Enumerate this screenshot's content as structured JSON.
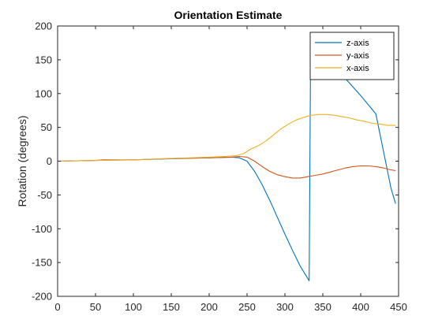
{
  "chart_data": {
    "type": "line",
    "title": "Orientation Estimate",
    "xlabel": "",
    "ylabel": "Rotation (degrees)",
    "xlim": [
      0,
      450
    ],
    "ylim": [
      -200,
      200
    ],
    "xticks": [
      0,
      50,
      100,
      150,
      200,
      250,
      300,
      350,
      400,
      450
    ],
    "yticks": [
      -200,
      -150,
      -100,
      -50,
      0,
      50,
      100,
      150,
      200
    ],
    "grid": false,
    "legend_position": "top-right",
    "series": [
      {
        "name": "z-axis",
        "color": "#0072BD",
        "points": [
          [
            0,
            0
          ],
          [
            50,
            1
          ],
          [
            100,
            2
          ],
          [
            150,
            3.5
          ],
          [
            200,
            5
          ],
          [
            230,
            6
          ],
          [
            240,
            5
          ],
          [
            250,
            0
          ],
          [
            260,
            -15
          ],
          [
            270,
            -35
          ],
          [
            280,
            -58
          ],
          [
            290,
            -83
          ],
          [
            300,
            -108
          ],
          [
            310,
            -132
          ],
          [
            320,
            -155
          ],
          [
            332,
            -177
          ],
          [
            334,
            178
          ],
          [
            340,
            171
          ],
          [
            360,
            148
          ],
          [
            380,
            122
          ],
          [
            400,
            97
          ],
          [
            420,
            70
          ],
          [
            440,
            -40
          ],
          [
            446,
            -63
          ]
        ]
      },
      {
        "name": "y-axis",
        "color": "#D95319",
        "points": [
          [
            0,
            0
          ],
          [
            50,
            1
          ],
          [
            60,
            2
          ],
          [
            100,
            2
          ],
          [
            150,
            4
          ],
          [
            200,
            5
          ],
          [
            230,
            6
          ],
          [
            240,
            7
          ],
          [
            250,
            6
          ],
          [
            260,
            0
          ],
          [
            270,
            -8
          ],
          [
            280,
            -15
          ],
          [
            290,
            -20
          ],
          [
            300,
            -23
          ],
          [
            310,
            -25
          ],
          [
            320,
            -25
          ],
          [
            330,
            -23
          ],
          [
            340,
            -21
          ],
          [
            350,
            -19
          ],
          [
            360,
            -16
          ],
          [
            370,
            -13
          ],
          [
            380,
            -10
          ],
          [
            390,
            -8
          ],
          [
            400,
            -7
          ],
          [
            410,
            -7
          ],
          [
            420,
            -8
          ],
          [
            430,
            -10
          ],
          [
            440,
            -13
          ],
          [
            446,
            -14
          ]
        ]
      },
      {
        "name": "x-axis",
        "color": "#EDB120",
        "points": [
          [
            0,
            0
          ],
          [
            50,
            1
          ],
          [
            100,
            2
          ],
          [
            150,
            4
          ],
          [
            200,
            6
          ],
          [
            220,
            7
          ],
          [
            235,
            8
          ],
          [
            245,
            11
          ],
          [
            255,
            18
          ],
          [
            265,
            23
          ],
          [
            275,
            30
          ],
          [
            285,
            39
          ],
          [
            295,
            48
          ],
          [
            305,
            55
          ],
          [
            315,
            61
          ],
          [
            325,
            65
          ],
          [
            335,
            68
          ],
          [
            345,
            69
          ],
          [
            355,
            69
          ],
          [
            365,
            68
          ],
          [
            375,
            66
          ],
          [
            385,
            64
          ],
          [
            395,
            61
          ],
          [
            405,
            59
          ],
          [
            415,
            56
          ],
          [
            425,
            55
          ],
          [
            435,
            53
          ],
          [
            446,
            53
          ]
        ]
      }
    ]
  }
}
